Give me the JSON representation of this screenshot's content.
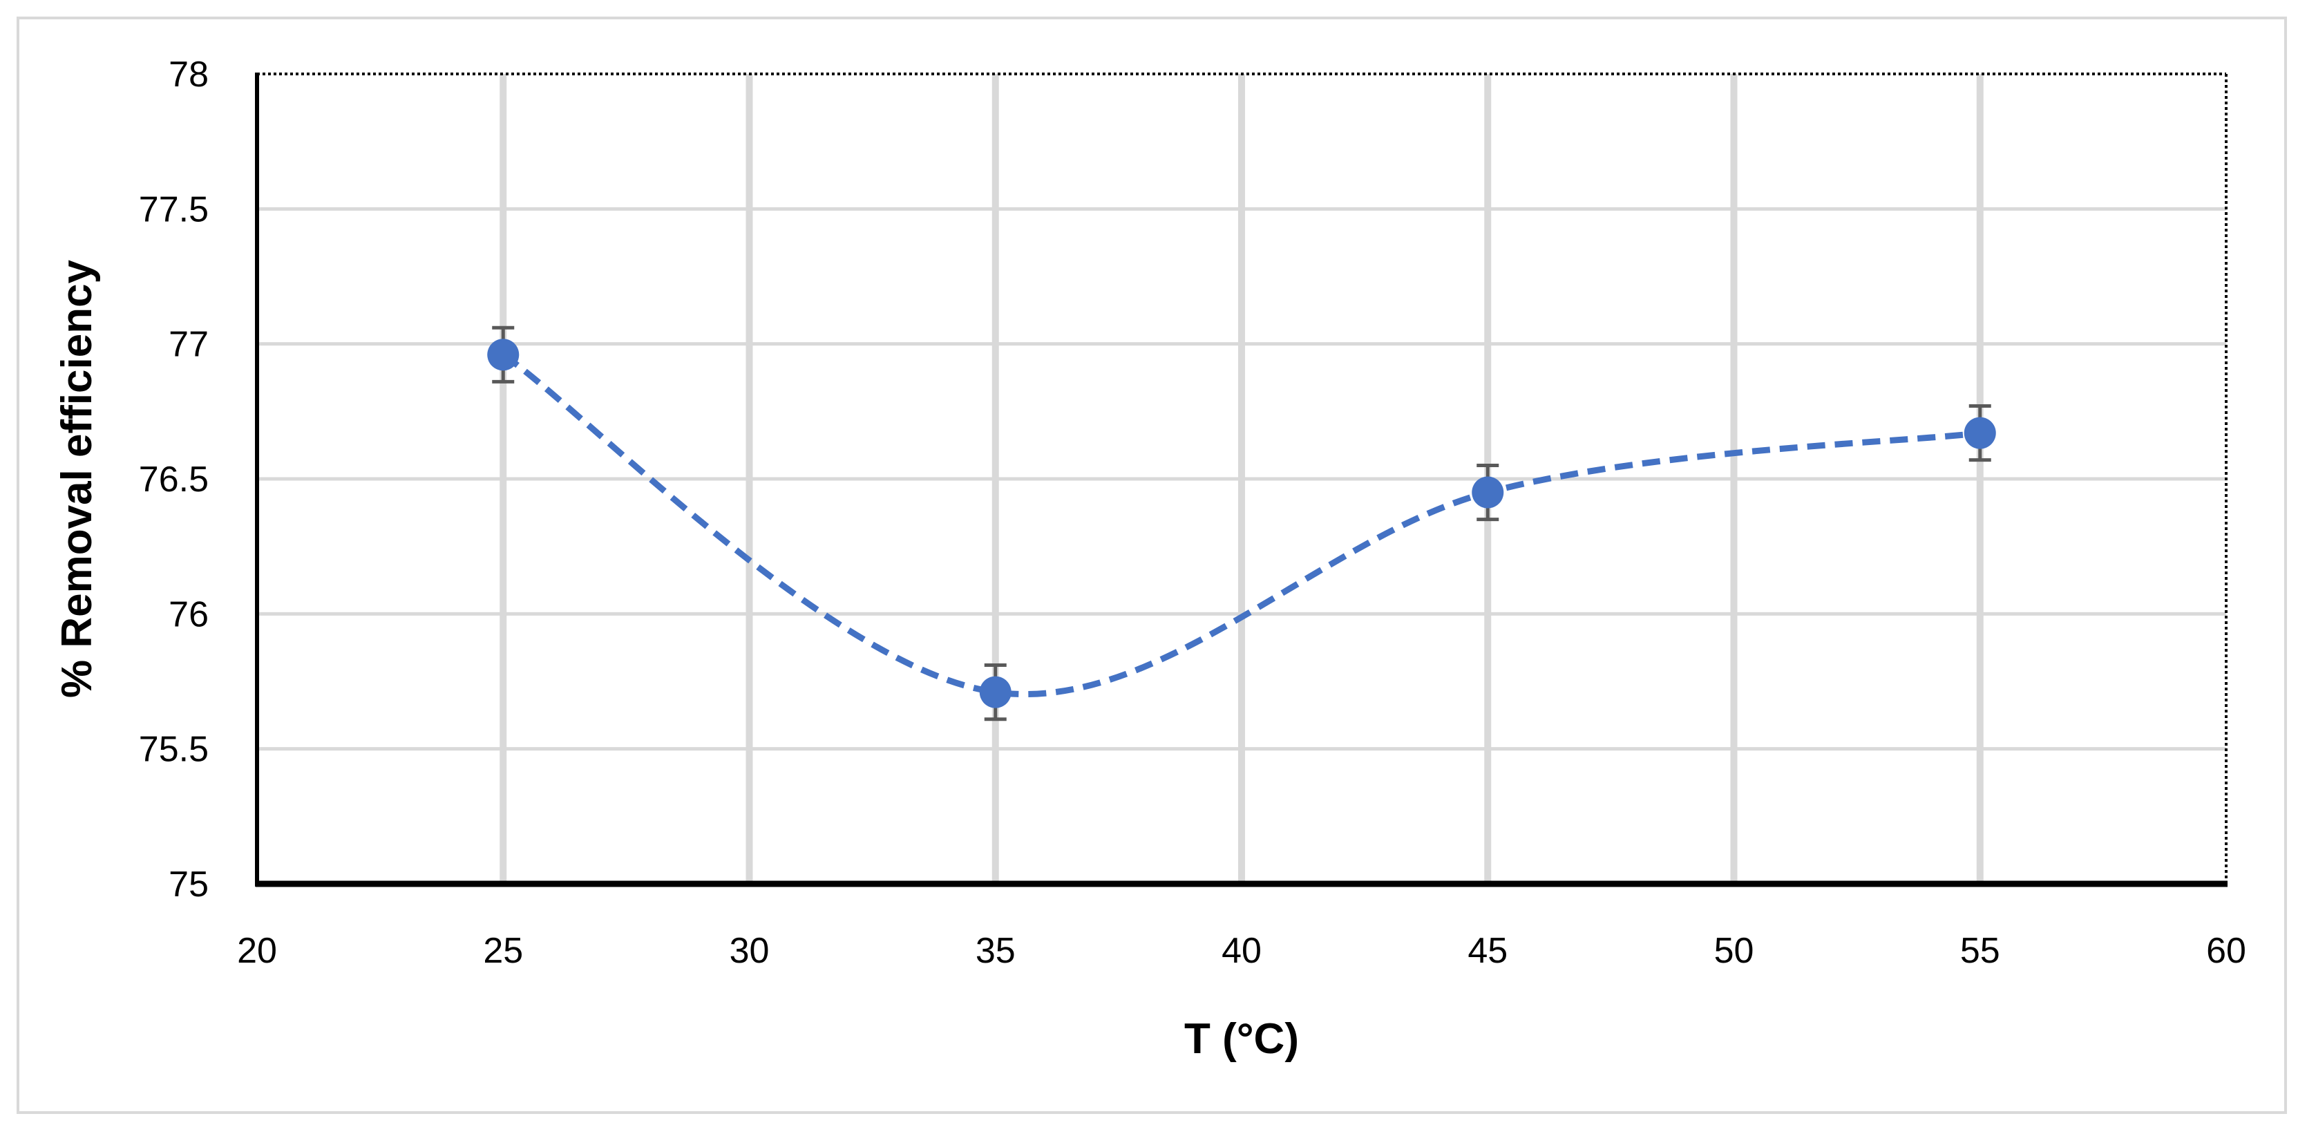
{
  "chart_data": {
    "type": "scatter",
    "xlabel": "T (°C)",
    "ylabel": "% Removal efficiency",
    "xlim": [
      20,
      60
    ],
    "ylim": [
      75,
      78
    ],
    "xticks": [
      20,
      25,
      30,
      35,
      40,
      45,
      50,
      55,
      60
    ],
    "yticks": [
      75,
      75.5,
      76,
      76.5,
      77,
      77.5,
      78
    ],
    "xtick_labels": [
      "20",
      "25",
      "30",
      "35",
      "40",
      "45",
      "50",
      "55",
      "60"
    ],
    "ytick_labels": [
      "75",
      "75.5",
      "76",
      "76.5",
      "77",
      "77.5",
      "78"
    ],
    "grid": true,
    "line_style": "dashed smooth",
    "series": [
      {
        "x": [
          25,
          35,
          45,
          55
        ],
        "y": [
          76.96,
          75.71,
          76.45,
          76.67
        ],
        "error": [
          0.1,
          0.1,
          0.1,
          0.1
        ]
      }
    ],
    "colors": {
      "series": "#4472C4",
      "grid": "#d9d9d9",
      "error_bar": "#595959",
      "axis": "#000000"
    }
  }
}
